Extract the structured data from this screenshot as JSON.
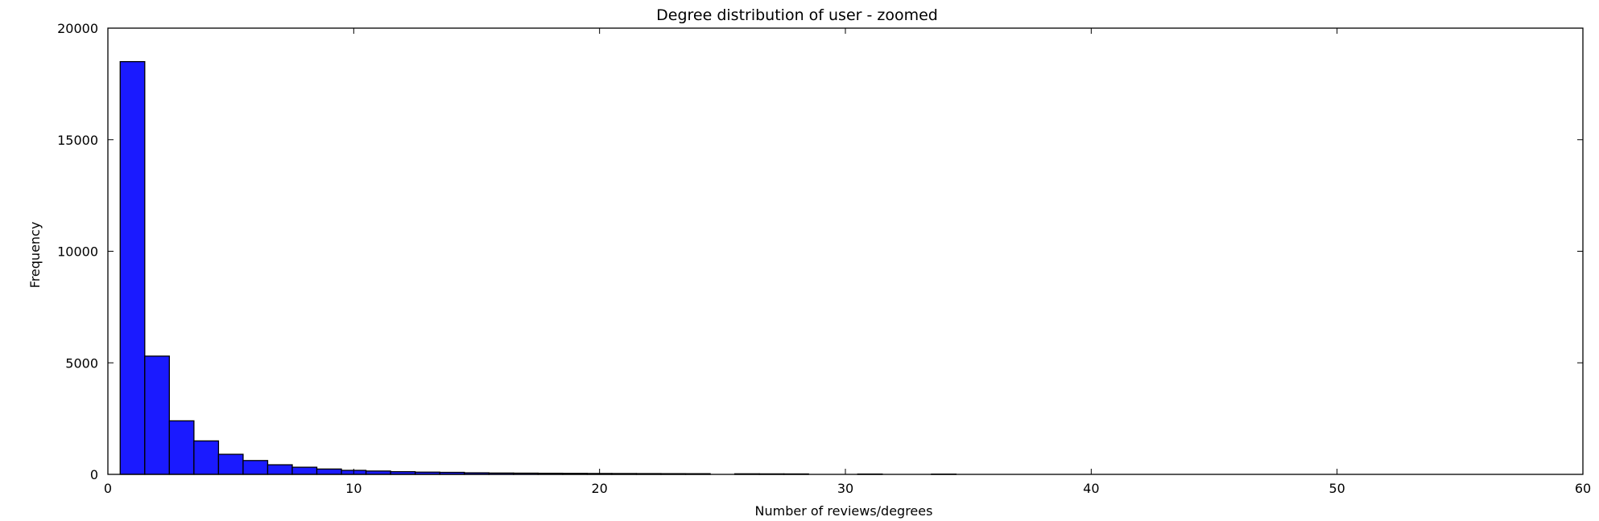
{
  "chart_data": {
    "type": "bar",
    "title": "Degree distribution of user - zoomed",
    "xlabel": "Number of reviews/degrees",
    "ylabel": "Frequency",
    "xlim": [
      0,
      60
    ],
    "ylim": [
      0,
      20000
    ],
    "xticks": [
      0,
      10,
      20,
      30,
      40,
      50,
      60
    ],
    "yticks": [
      0,
      5000,
      10000,
      15000,
      20000
    ],
    "grid": false,
    "bar_color": "#1a1aff",
    "bins": [
      {
        "x0": 0.5,
        "x1": 1.5,
        "value": 18500
      },
      {
        "x0": 1.5,
        "x1": 2.5,
        "value": 5300
      },
      {
        "x0": 2.5,
        "x1": 3.5,
        "value": 2400
      },
      {
        "x0": 3.5,
        "x1": 4.5,
        "value": 1500
      },
      {
        "x0": 4.5,
        "x1": 5.5,
        "value": 900
      },
      {
        "x0": 5.5,
        "x1": 6.5,
        "value": 620
      },
      {
        "x0": 6.5,
        "x1": 7.5,
        "value": 430
      },
      {
        "x0": 7.5,
        "x1": 8.5,
        "value": 320
      },
      {
        "x0": 8.5,
        "x1": 9.5,
        "value": 240
      },
      {
        "x0": 9.5,
        "x1": 10.5,
        "value": 180
      },
      {
        "x0": 10.5,
        "x1": 11.5,
        "value": 150
      },
      {
        "x0": 11.5,
        "x1": 12.5,
        "value": 120
      },
      {
        "x0": 12.5,
        "x1": 13.5,
        "value": 100
      },
      {
        "x0": 13.5,
        "x1": 14.5,
        "value": 90
      },
      {
        "x0": 14.5,
        "x1": 15.5,
        "value": 70
      },
      {
        "x0": 15.5,
        "x1": 16.5,
        "value": 60
      },
      {
        "x0": 16.5,
        "x1": 17.5,
        "value": 55
      },
      {
        "x0": 17.5,
        "x1": 18.5,
        "value": 50
      },
      {
        "x0": 18.5,
        "x1": 19.5,
        "value": 45
      },
      {
        "x0": 19.5,
        "x1": 20.5,
        "value": 40
      },
      {
        "x0": 20.5,
        "x1": 21.5,
        "value": 38
      },
      {
        "x0": 21.5,
        "x1": 22.5,
        "value": 35
      },
      {
        "x0": 22.5,
        "x1": 23.5,
        "value": 32
      },
      {
        "x0": 23.5,
        "x1": 24.5,
        "value": 30
      },
      {
        "x0": 25.5,
        "x1": 26.5,
        "value": 25
      },
      {
        "x0": 26.5,
        "x1": 27.5,
        "value": 22
      },
      {
        "x0": 27.5,
        "x1": 28.5,
        "value": 20
      },
      {
        "x0": 30.5,
        "x1": 31.5,
        "value": 15
      },
      {
        "x0": 33.5,
        "x1": 34.5,
        "value": 12
      }
    ]
  }
}
